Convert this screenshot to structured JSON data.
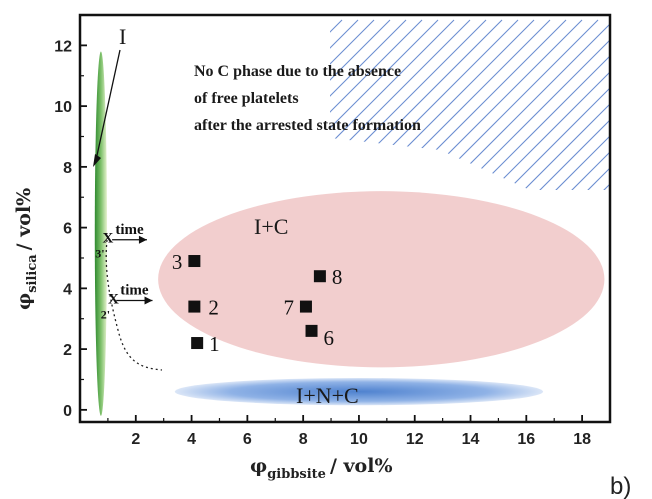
{
  "chart_data": {
    "type": "scatter",
    "xlim": [
      0,
      19
    ],
    "ylim": [
      -0.4,
      13
    ],
    "x_ticks": [
      2,
      4,
      6,
      8,
      10,
      12,
      14,
      16,
      18
    ],
    "y_ticks": [
      0,
      2,
      4,
      6,
      8,
      10,
      12
    ],
    "xlabel": {
      "main": "φ",
      "sub": "gibbsite",
      "rest": "/ vol%"
    },
    "ylabel": {
      "main": "φ",
      "sub": "silica",
      "rest": "/ vol%"
    },
    "grid": false,
    "points": [
      {
        "label": "1",
        "x": 4.2,
        "y": 2.2
      },
      {
        "label": "2",
        "x": 4.1,
        "y": 3.4
      },
      {
        "label": "3",
        "x": 4.1,
        "y": 4.9
      },
      {
        "label": "6",
        "x": 8.3,
        "y": 2.6
      },
      {
        "label": "7",
        "x": 8.1,
        "y": 3.4
      },
      {
        "label": "8",
        "x": 8.6,
        "y": 4.4
      }
    ],
    "regions": [
      {
        "label": "I",
        "color": "#3f9a3f",
        "cx": 0.75,
        "cy": 5.8,
        "rx": 0.22,
        "ry": 6.0
      },
      {
        "label": "I+C",
        "color": "#f0c6c6",
        "cx": 10.8,
        "cy": 4.3,
        "rx": 8.0,
        "ry": 2.9
      },
      {
        "label": "I+N+C",
        "color": "#5b8fd6",
        "cx": 10.0,
        "cy": 0.6,
        "rx": 6.6,
        "ry": 0.45
      }
    ],
    "markers": [
      {
        "symbol": "x",
        "label": "3'",
        "x": 1.0,
        "y": 5.7
      },
      {
        "symbol": "x",
        "label": "2'",
        "x": 1.2,
        "y": 3.7
      }
    ],
    "arrows": [
      {
        "label": "time",
        "from": [
          1.15,
          5.6
        ],
        "to": [
          2.4,
          5.6
        ]
      },
      {
        "label": "time",
        "from": [
          1.3,
          3.6
        ],
        "to": [
          2.6,
          3.6
        ]
      }
    ],
    "annotation_lines": [
      "No C phase due to the absence",
      "of free platelets",
      "after the arrested state formation"
    ],
    "region_I_label": {
      "text": "I",
      "x": 1.3,
      "y": 12.6
    },
    "panel_label": "b)",
    "colors": {
      "hatch": "#6b8ed1",
      "axis": "#111111",
      "marker": "#111111"
    }
  }
}
